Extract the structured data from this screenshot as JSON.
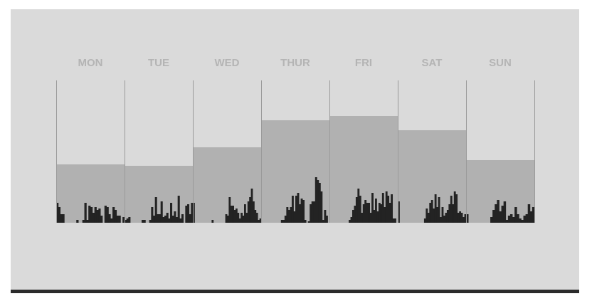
{
  "chart_data": {
    "type": "bar",
    "categories": [
      "MON",
      "TUE",
      "WED",
      "THUR",
      "FRI",
      "SAT",
      "SUN"
    ],
    "series": [
      {
        "values": [
          41,
          40,
          53,
          72,
          75,
          65,
          44
        ]
      }
    ],
    "ylim": [
      0,
      100
    ],
    "grid": true,
    "hourly_activity": {
      "ylim": [
        0,
        100
      ],
      "values": [
        [
          14,
          11,
          6,
          6,
          0,
          0,
          0,
          0,
          0,
          0,
          2,
          0,
          0,
          2,
          14,
          2,
          12,
          11,
          7,
          11,
          9,
          10,
          5,
          0,
          12,
          11,
          6,
          3,
          11,
          9,
          5,
          5,
          0,
          4
        ],
        [
          2,
          3,
          4,
          0,
          0,
          0,
          0,
          0,
          0,
          2,
          2,
          0,
          0,
          2,
          11,
          5,
          18,
          6,
          6,
          15,
          4,
          5,
          7,
          3,
          14,
          5,
          8,
          4,
          19,
          3,
          6,
          0,
          12,
          13,
          6,
          14
        ],
        [
          14,
          0,
          0,
          0,
          0,
          0,
          0,
          0,
          0,
          0,
          0,
          2,
          0,
          0,
          0,
          0,
          0,
          0,
          0,
          6,
          5,
          18,
          12,
          12,
          9,
          10,
          7,
          3,
          7,
          5,
          13,
          7,
          15,
          18,
          24,
          15,
          9,
          7,
          2,
          3
        ],
        [
          0,
          0,
          0,
          0,
          0,
          0,
          0,
          0,
          0,
          0,
          0,
          2,
          2,
          5,
          11,
          9,
          11,
          19,
          8,
          19,
          21,
          13,
          17,
          16,
          2,
          0,
          1,
          13,
          15,
          15,
          32,
          30,
          28,
          22,
          2,
          9,
          5,
          0
        ],
        [
          0,
          0,
          0,
          0,
          0,
          0,
          0,
          0,
          0,
          0,
          0,
          2,
          4,
          9,
          12,
          18,
          24,
          19,
          7,
          13,
          16,
          14,
          14,
          7,
          21,
          9,
          17,
          8,
          14,
          13,
          21,
          11,
          22,
          19,
          14,
          20,
          3,
          3,
          0
        ],
        [
          15,
          0,
          0,
          0,
          0,
          0,
          0,
          0,
          0,
          0,
          0,
          0,
          0,
          0,
          0,
          3,
          10,
          7,
          14,
          16,
          10,
          20,
          11,
          18,
          4,
          11,
          5,
          7,
          9,
          13,
          19,
          13,
          22,
          20,
          7,
          8,
          7,
          4,
          6
        ],
        [
          6,
          0,
          0,
          0,
          0,
          0,
          0,
          0,
          0,
          0,
          0,
          4,
          9,
          13,
          16,
          8,
          12,
          15,
          2,
          5,
          6,
          4,
          11,
          6,
          3,
          2,
          5,
          6,
          13,
          8,
          11
        ]
      ]
    },
    "colors": {
      "panel_background": "#dadada",
      "daily_bar": "#b1b1b1",
      "hourly_bar": "#232323",
      "grid_line": "#9a9a9a",
      "day_label": "#b4b4b4",
      "bottom_rule": "#2b2b2b"
    }
  }
}
